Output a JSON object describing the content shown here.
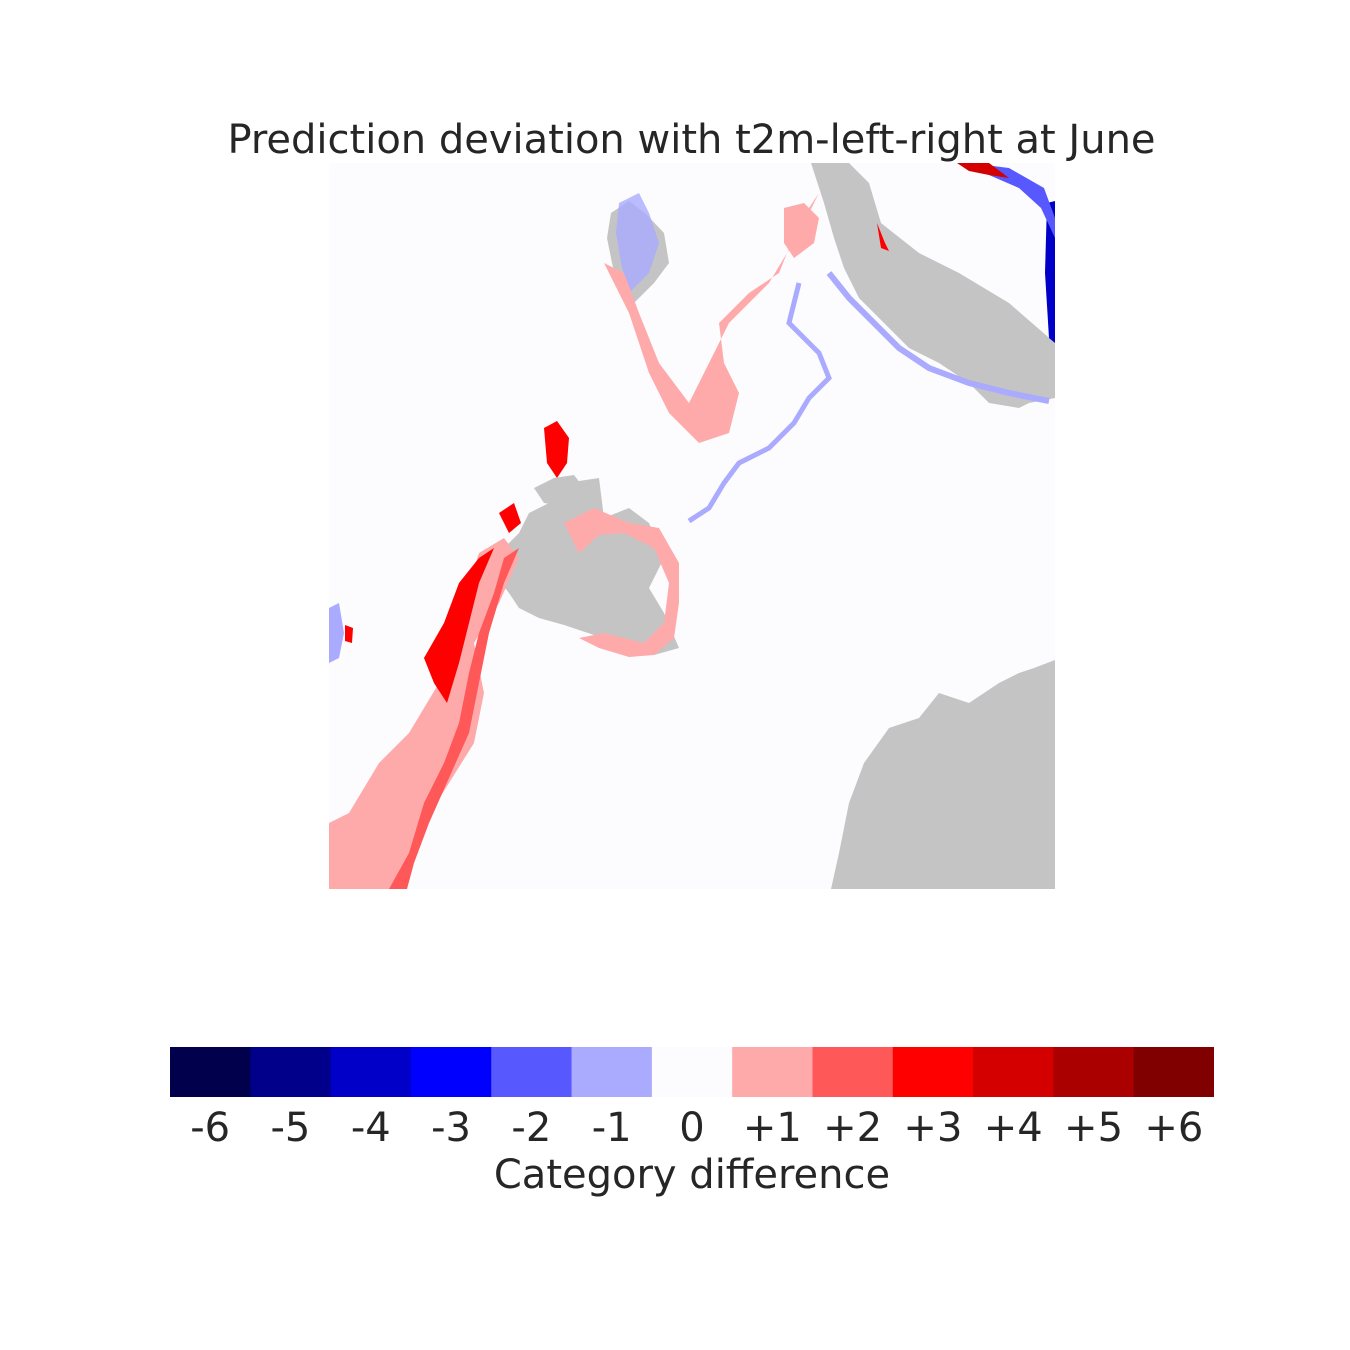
{
  "chart_data": {
    "type": "heatmap",
    "title": "Prediction deviation with t2m-left-right at June",
    "colorbar": {
      "label": "Category difference",
      "categories": [
        "-6",
        "-5",
        "-4",
        "-3",
        "-2",
        "-1",
        "0",
        "+1",
        "+2",
        "+3",
        "+4",
        "+5",
        "+6"
      ],
      "values": [
        -6,
        -5,
        -4,
        -3,
        -2,
        -1,
        0,
        1,
        2,
        3,
        4,
        5,
        6
      ],
      "colors": [
        "#00004c",
        "#00008a",
        "#0000c8",
        "#0000ff",
        "#5858ff",
        "#aaaaff",
        "#fcfcff",
        "#ffaaaa",
        "#ff5858",
        "#ff0000",
        "#d40000",
        "#aa0000",
        "#800000"
      ]
    },
    "land_color": "#c4c4c4",
    "background_value": 0,
    "axes": "off"
  }
}
